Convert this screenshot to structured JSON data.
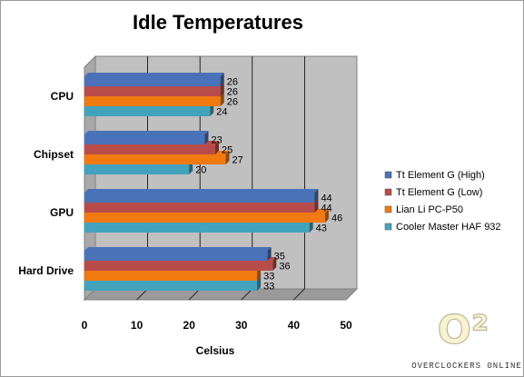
{
  "chart_data": {
    "type": "bar",
    "orientation": "horizontal",
    "title": "Idle Temperatures",
    "xlabel": "Celsius",
    "ylabel": "",
    "categories": [
      "CPU",
      "Chipset",
      "GPU",
      "Hard Drive"
    ],
    "xlim": [
      0,
      50
    ],
    "xticks": [
      "0",
      "10",
      "20",
      "30",
      "40",
      "50"
    ],
    "grid": true,
    "legend_position": "right",
    "series": [
      {
        "name": "Tt Element G (High)",
        "color": "#4a72b8",
        "values": [
          26,
          23,
          44,
          35
        ]
      },
      {
        "name": "Tt Element G (Low)",
        "color": "#b84c4a",
        "values": [
          26,
          25,
          44,
          36
        ]
      },
      {
        "name": "Lian Li PC-P50",
        "color": "#f07a10",
        "values": [
          26,
          27,
          46,
          33
        ]
      },
      {
        "name": "Cooler Master HAF 932",
        "color": "#43a3bd",
        "values": [
          24,
          20,
          43,
          33
        ]
      }
    ]
  },
  "watermark": {
    "logo_text": "O²",
    "caption": "OVERCLOCKERS ONLINE"
  }
}
